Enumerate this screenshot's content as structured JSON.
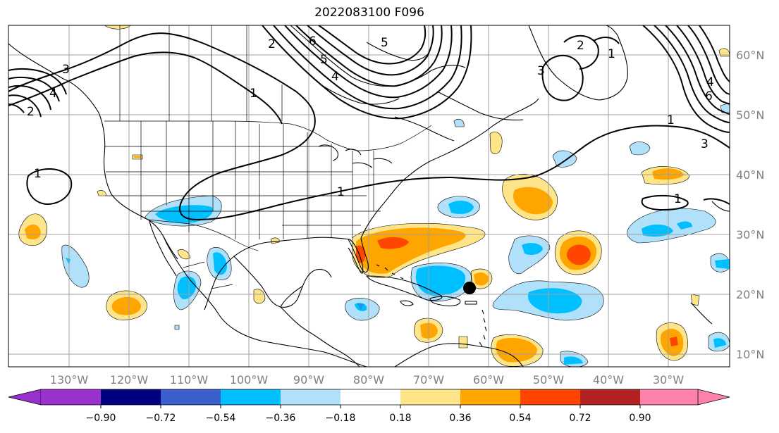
{
  "map": {
    "title": "2022083100 F096",
    "lon_labels": [
      "130°W",
      "120°W",
      "110°W",
      "100°W",
      "90°W",
      "80°W",
      "70°W",
      "60°W",
      "50°W",
      "40°W",
      "30°W"
    ],
    "lat_labels": [
      "60°N",
      "50°N",
      "40°N",
      "30°N",
      "20°N",
      "10°N"
    ],
    "contour_labels": [
      "6",
      "5",
      "4",
      "3",
      "2",
      "1",
      "1",
      "1",
      "1",
      "2",
      "3",
      "4",
      "5",
      "6",
      "2",
      "3",
      "1",
      "1",
      "4"
    ],
    "colorbar": {
      "ticks": [
        "−0.90",
        "−0.72",
        "−0.54",
        "−0.36",
        "−0.18",
        "0.18",
        "0.36",
        "0.54",
        "0.72",
        "0.90"
      ],
      "colors": [
        "#9932cc",
        "#000080",
        "#3a5fcd",
        "#00bfff",
        "#b0e0fa",
        "#ffffff",
        "#ffe58a",
        "#ffa500",
        "#ff4500",
        "#b22222",
        "#ff82ab"
      ]
    },
    "shading_colors": {
      "light_pos": "#ffe58a",
      "med_pos": "#ffa500",
      "strong_pos": "#ff4500",
      "light_neg": "#b0e0fa",
      "med_neg": "#00bfff"
    },
    "storm_marker": {
      "lon": "64.5°W",
      "lat": "21°N"
    }
  }
}
